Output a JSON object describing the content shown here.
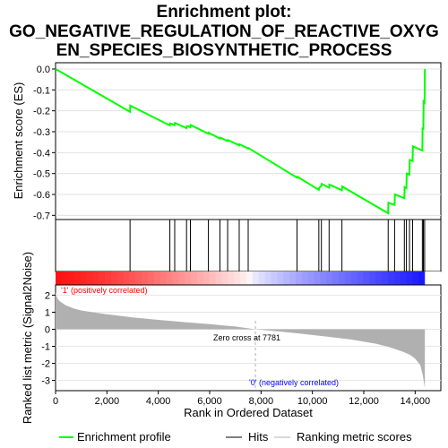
{
  "chart_data": {
    "type": "line",
    "title_lines": [
      "Enrichment plot:",
      "GO_NEGATIVE_REGULATION_OF_REACTIVE_OXYG",
      "EN_SPECIES_BIOSYNTHETIC_PROCESS"
    ],
    "top_panel": {
      "ylabel": "Enrichment score (ES)",
      "ylim": [
        -0.72,
        0.03
      ],
      "yticks": [
        "0.0",
        "-0.1",
        "-0.2",
        "-0.3",
        "-0.4",
        "-0.5",
        "-0.6",
        "-0.7"
      ],
      "ytick_values": [
        0.0,
        -0.1,
        -0.2,
        -0.3,
        -0.4,
        -0.5,
        -0.6,
        -0.7
      ],
      "series": [
        {
          "name": "Enrichment profile",
          "color": "#00ff00",
          "x": [
            0,
            2900,
            2910,
            4450,
            4460,
            4640,
            4650,
            5100,
            5110,
            5250,
            5260,
            5950,
            5960,
            6400,
            6410,
            6700,
            6710,
            7150,
            7160,
            7500,
            7510,
            9400,
            9410,
            10250,
            10260,
            10350,
            10360,
            10650,
            10660,
            11150,
            11160,
            12950,
            12960,
            13200,
            13210,
            13580,
            13590,
            13660,
            13670,
            13780,
            13790,
            13900,
            13910,
            14280,
            14290,
            14320,
            14330,
            14370,
            14380
          ],
          "y": [
            0.0,
            -0.205,
            -0.175,
            -0.27,
            -0.26,
            -0.268,
            -0.258,
            -0.283,
            -0.273,
            -0.278,
            -0.268,
            -0.31,
            -0.305,
            -0.333,
            -0.328,
            -0.345,
            -0.34,
            -0.365,
            -0.36,
            -0.38,
            -0.378,
            -0.52,
            -0.515,
            -0.578,
            -0.57,
            -0.558,
            -0.55,
            -0.568,
            -0.553,
            -0.58,
            -0.562,
            -0.69,
            -0.64,
            -0.65,
            -0.6,
            -0.618,
            -0.565,
            -0.57,
            -0.5,
            -0.505,
            -0.435,
            -0.44,
            -0.37,
            -0.39,
            -0.28,
            -0.29,
            -0.155,
            -0.16,
            0.0
          ]
        }
      ]
    },
    "hits_panel": {
      "legend_label": "Hits",
      "hit_positions": [
        2900,
        4450,
        4640,
        5100,
        5250,
        5950,
        6400,
        6700,
        7150,
        7500,
        9400,
        10250,
        10350,
        10650,
        11150,
        12950,
        13200,
        13580,
        13660,
        13780,
        13900,
        14280,
        14320,
        14370
      ]
    },
    "bottom_panel": {
      "ylabel": "Ranked list metric (Signal2Noise)",
      "xlabel": "Rank in Ordered Dataset",
      "legend_label": "Ranking metric scores",
      "ylim": [
        -3.6,
        2.6
      ],
      "yticks": [
        "2",
        "1",
        "0",
        "-1",
        "-2",
        "-3"
      ],
      "ytick_values": [
        2,
        1,
        0,
        -1,
        -2,
        -3
      ],
      "xlim": [
        0,
        15000
      ],
      "xticks": [
        "0",
        "2,000",
        "4,000",
        "6,000",
        "8,000",
        "10,000",
        "12,000",
        "14,000"
      ],
      "xtick_values": [
        0,
        2000,
        4000,
        6000,
        8000,
        10000,
        12000,
        14000
      ],
      "metric_x": [
        0,
        30,
        100,
        200,
        400,
        700,
        1000,
        1500,
        2000,
        3000,
        4000,
        5000,
        6000,
        7000,
        7781,
        8500,
        9500,
        10500,
        11500,
        12500,
        13000,
        13500,
        13800,
        14000,
        14200,
        14300,
        14380
      ],
      "metric_y": [
        2.2,
        1.95,
        1.75,
        1.6,
        1.4,
        1.22,
        1.1,
        0.98,
        0.88,
        0.7,
        0.55,
        0.42,
        0.3,
        0.16,
        0.0,
        -0.1,
        -0.25,
        -0.42,
        -0.6,
        -0.85,
        -1.05,
        -1.3,
        -1.5,
        -1.72,
        -2.1,
        -2.7,
        -3.45
      ],
      "positive_label": "'1' (positively correlated)",
      "negative_label": "'0' (negatively correlated)",
      "zero_cross_label": "Zero cross at 7781",
      "zero_cross": 7781
    },
    "colors": {
      "profile": "#00ff00",
      "hit": "#000000",
      "metric_fill": "#b0b0b0",
      "positive": "#ff0000",
      "negative": "#0000ff"
    }
  }
}
